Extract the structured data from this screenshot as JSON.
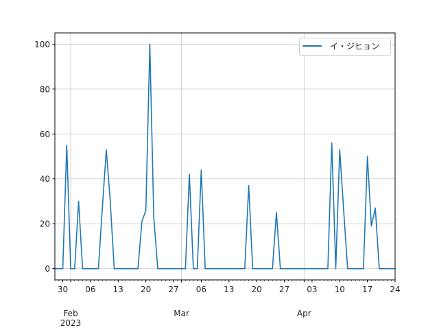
{
  "chart_data": {
    "type": "line",
    "title": "",
    "xlabel": "",
    "ylabel": "",
    "ylim": [
      -5,
      105
    ],
    "xlim": [
      "2023-01-28",
      "2023-04-24"
    ],
    "grid": true,
    "legend_placement": "top-right",
    "yticks": [
      0,
      20,
      40,
      60,
      80,
      100
    ],
    "xticks_major": [
      {
        "date": "2023-01-30",
        "label": "30"
      },
      {
        "date": "2023-02-06",
        "label": "06"
      },
      {
        "date": "2023-02-13",
        "label": "13"
      },
      {
        "date": "2023-02-20",
        "label": "20"
      },
      {
        "date": "2023-02-27",
        "label": "27"
      },
      {
        "date": "2023-03-06",
        "label": "06"
      },
      {
        "date": "2023-03-13",
        "label": "13"
      },
      {
        "date": "2023-03-20",
        "label": "20"
      },
      {
        "date": "2023-03-27",
        "label": "27"
      },
      {
        "date": "2023-04-03",
        "label": "03"
      },
      {
        "date": "2023-04-10",
        "label": "10"
      },
      {
        "date": "2023-04-17",
        "label": "17"
      },
      {
        "date": "2023-04-24",
        "label": "24"
      }
    ],
    "xticks_month": [
      {
        "date": "2023-02-01",
        "label": "Feb",
        "sublabel": "2023"
      },
      {
        "date": "2023-03-01",
        "label": "Mar",
        "sublabel": ""
      },
      {
        "date": "2023-04-01",
        "label": "Apr",
        "sublabel": ""
      }
    ],
    "series": [
      {
        "name": "イ・ジヒョン",
        "color": "#1f77b4",
        "x": [
          "2023-01-28",
          "2023-01-29",
          "2023-01-30",
          "2023-01-31",
          "2023-02-01",
          "2023-02-02",
          "2023-02-03",
          "2023-02-04",
          "2023-02-05",
          "2023-02-06",
          "2023-02-07",
          "2023-02-08",
          "2023-02-09",
          "2023-02-10",
          "2023-02-11",
          "2023-02-12",
          "2023-02-13",
          "2023-02-14",
          "2023-02-15",
          "2023-02-16",
          "2023-02-17",
          "2023-02-18",
          "2023-02-19",
          "2023-02-20",
          "2023-02-21",
          "2023-02-22",
          "2023-02-23",
          "2023-02-24",
          "2023-02-25",
          "2023-02-26",
          "2023-02-27",
          "2023-02-28",
          "2023-03-01",
          "2023-03-02",
          "2023-03-03",
          "2023-03-04",
          "2023-03-05",
          "2023-03-06",
          "2023-03-07",
          "2023-03-08",
          "2023-03-09",
          "2023-03-10",
          "2023-03-11",
          "2023-03-12",
          "2023-03-13",
          "2023-03-14",
          "2023-03-15",
          "2023-03-16",
          "2023-03-17",
          "2023-03-18",
          "2023-03-19",
          "2023-03-20",
          "2023-03-21",
          "2023-03-22",
          "2023-03-23",
          "2023-03-24",
          "2023-03-25",
          "2023-03-26",
          "2023-03-27",
          "2023-03-28",
          "2023-03-29",
          "2023-03-30",
          "2023-03-31",
          "2023-04-01",
          "2023-04-02",
          "2023-04-03",
          "2023-04-04",
          "2023-04-05",
          "2023-04-06",
          "2023-04-07",
          "2023-04-08",
          "2023-04-09",
          "2023-04-10",
          "2023-04-11",
          "2023-04-12",
          "2023-04-13",
          "2023-04-14",
          "2023-04-15",
          "2023-04-16",
          "2023-04-17",
          "2023-04-18",
          "2023-04-19",
          "2023-04-20",
          "2023-04-21",
          "2023-04-22",
          "2023-04-23",
          "2023-04-24"
        ],
        "values": [
          0,
          0,
          0,
          55,
          0,
          0,
          30,
          0,
          0,
          0,
          0,
          0,
          27,
          53,
          30,
          0,
          0,
          0,
          0,
          0,
          0,
          0,
          21,
          26,
          100,
          23,
          0,
          0,
          0,
          0,
          0,
          0,
          0,
          0,
          42,
          0,
          0,
          44,
          0,
          0,
          0,
          0,
          0,
          0,
          0,
          0,
          0,
          0,
          0,
          37,
          0,
          0,
          0,
          0,
          0,
          0,
          25,
          0,
          0,
          0,
          0,
          0,
          0,
          0,
          0,
          0,
          0,
          0,
          0,
          0,
          56,
          0,
          53,
          26,
          0,
          0,
          0,
          0,
          0,
          50,
          19,
          27,
          0,
          0,
          0,
          0,
          0
        ]
      }
    ]
  }
}
